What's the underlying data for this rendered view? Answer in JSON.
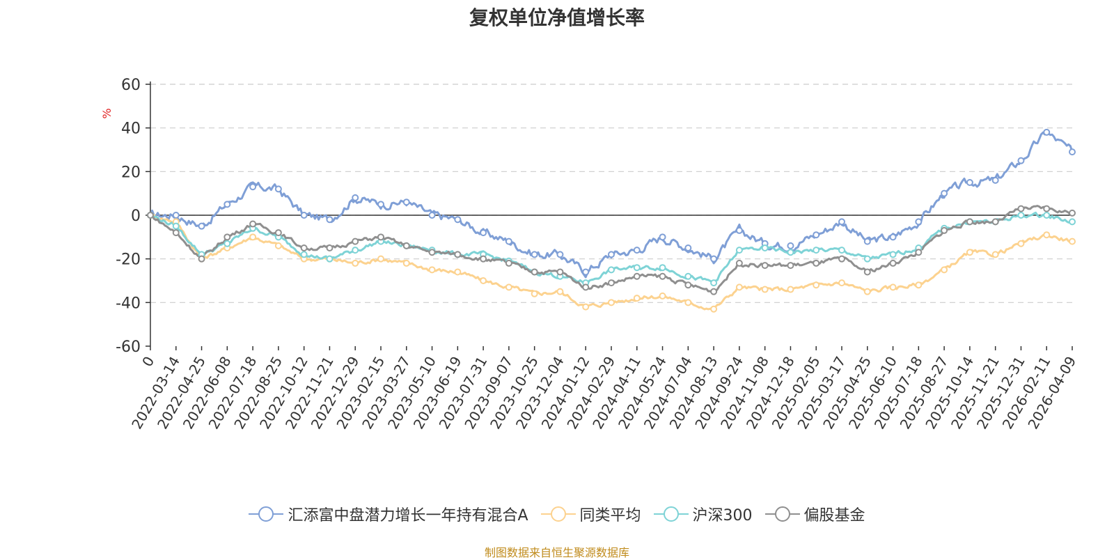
{
  "chart_data": {
    "type": "line",
    "title": "复权单位净值增长率",
    "ylabel": "%",
    "xlabel": "",
    "ylim": [
      -60,
      60
    ],
    "yticks": [
      60,
      40,
      20,
      0,
      -20,
      -40,
      -60
    ],
    "grid": true,
    "legend_position": "bottom",
    "categories": [
      "0",
      "2022-03-14",
      "2022-04-25",
      "2022-06-08",
      "2022-07-18",
      "2022-08-25",
      "2022-10-12",
      "2022-11-21",
      "2022-12-29",
      "2023-02-15",
      "2023-03-27",
      "2023-05-10",
      "2023-06-19",
      "2023-07-31",
      "2023-09-07",
      "2023-10-25",
      "2023-12-04",
      "2024-01-12",
      "2024-02-29",
      "2024-04-11",
      "2024-05-24",
      "2024-07-04",
      "2024-08-13",
      "2024-09-24",
      "2024-11-08",
      "2024-12-18",
      "2025-02-05",
      "2025-03-17",
      "2025-04-25",
      "2025-06-10",
      "2025-07-18",
      "2025-08-27",
      "2025-10-14",
      "2025-11-21",
      "2025-12-31",
      "2026-02-11",
      "2026-04-09"
    ],
    "series": [
      {
        "name": "汇添富中盘潜力增长一年持有混合A",
        "color": "#7f9fd6",
        "values": [
          0,
          0,
          -5,
          5,
          13,
          12,
          0,
          -2,
          8,
          5,
          6,
          0,
          -2,
          -8,
          -12,
          -18,
          -18,
          -26,
          -18,
          -16,
          -10,
          -15,
          -20,
          -7,
          -13,
          -14,
          -9,
          -3,
          -12,
          -10,
          -3,
          10,
          15,
          16,
          25,
          38,
          29
        ]
      },
      {
        "name": "同类平均",
        "color": "#fcd28f",
        "values": [
          0,
          -3,
          -20,
          -15,
          -10,
          -14,
          -20,
          -20,
          -22,
          -20,
          -22,
          -25,
          -26,
          -30,
          -33,
          -36,
          -35,
          -42,
          -40,
          -38,
          -37,
          -40,
          -43,
          -33,
          -34,
          -34,
          -32,
          -31,
          -35,
          -33,
          -32,
          -25,
          -17,
          -18,
          -13,
          -9,
          -12
        ]
      },
      {
        "name": "沪深300",
        "color": "#7ed3d6",
        "values": [
          0,
          -5,
          -18,
          -13,
          -6,
          -10,
          -18,
          -20,
          -16,
          -12,
          -14,
          -16,
          -18,
          -18,
          -21,
          -26,
          -28,
          -31,
          -25,
          -24,
          -24,
          -28,
          -31,
          -16,
          -15,
          -17,
          -16,
          -16,
          -20,
          -18,
          -15,
          -6,
          -3,
          -3,
          0,
          0,
          -3
        ]
      },
      {
        "name": "偏股基金",
        "color": "#8f8f8f",
        "values": [
          0,
          -8,
          -20,
          -10,
          -4,
          -8,
          -15,
          -15,
          -12,
          -10,
          -14,
          -17,
          -18,
          -20,
          -22,
          -26,
          -26,
          -33,
          -31,
          -28,
          -28,
          -32,
          -35,
          -22,
          -23,
          -23,
          -22,
          -20,
          -26,
          -22,
          -17,
          -7,
          -3,
          -3,
          3,
          3,
          1
        ]
      }
    ]
  },
  "source_note": "制图数据来自恒生聚源数据库"
}
